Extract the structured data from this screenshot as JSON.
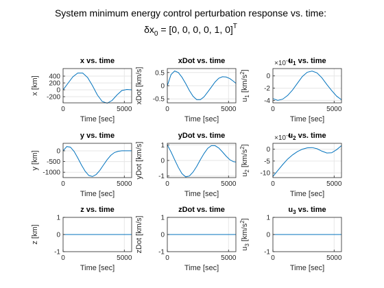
{
  "figure": {
    "title_line1": "System minimum energy control perturbation response vs. time:",
    "title_line2_prefix": "δx",
    "title_line2_sub": "0",
    "title_line2_body": " = [0, 0, 0, 0, 1, 0]",
    "title_line2_sup": "T"
  },
  "colors": {
    "line": "#0072bd",
    "grid": "#e6e6e6",
    "axis": "#262626"
  },
  "chart_data": [
    {
      "type": "line",
      "title": "x vs. time",
      "xlabel": "Time [sec]",
      "ylabel": "x [km]",
      "exponent": "",
      "xlim": [
        0,
        5600
      ],
      "ylim": [
        -380,
        620
      ],
      "xticks": [
        0,
        5000
      ],
      "xtick_labels": [
        "0",
        "5000"
      ],
      "yticks": [
        -200,
        0,
        200,
        400
      ],
      "ytick_labels": [
        "-200",
        "0",
        "200",
        "400"
      ],
      "x": [
        0,
        400,
        800,
        1200,
        1600,
        2000,
        2400,
        2800,
        3200,
        3600,
        4000,
        4400,
        4800,
        5200,
        5600
      ],
      "y": [
        0,
        190,
        380,
        490,
        490,
        360,
        120,
        -150,
        -340,
        -390,
        -310,
        -150,
        -20,
        10,
        0
      ]
    },
    {
      "type": "line",
      "title": "xDot vs. time",
      "xlabel": "Time [sec]",
      "ylabel": "xDot [km/s]",
      "exponent": "",
      "xlim": [
        0,
        5600
      ],
      "ylim": [
        -0.65,
        0.65
      ],
      "xticks": [
        0,
        5000
      ],
      "xtick_labels": [
        "0",
        "5000"
      ],
      "yticks": [
        -0.5,
        0,
        0.5
      ],
      "ytick_labels": [
        "-0.5",
        "0",
        "0.5"
      ],
      "x": [
        0,
        300,
        600,
        900,
        1200,
        1500,
        1800,
        2100,
        2400,
        2700,
        3000,
        3300,
        3600,
        3900,
        4200,
        4500,
        4800,
        5100,
        5400,
        5600
      ],
      "y": [
        0,
        0.42,
        0.56,
        0.5,
        0.32,
        0.08,
        -0.18,
        -0.4,
        -0.53,
        -0.53,
        -0.42,
        -0.24,
        -0.05,
        0.14,
        0.28,
        0.34,
        0.33,
        0.27,
        0.17,
        0.09
      ]
    },
    {
      "type": "line",
      "title": "u",
      "title_sub": "1",
      "title_tail": " vs. time",
      "xlabel": "Time [sec]",
      "ylabel": "u",
      "ylabel_sub": "1",
      "ylabel_tail": " [km/s",
      "ylabel_sup": "2",
      "ylabel_end": "]",
      "exponent": "×10",
      "exponent_sup": "-4",
      "xlim": [
        0,
        5600
      ],
      "ylim": [
        -4.4,
        1.2
      ],
      "xticks": [
        0,
        5000
      ],
      "xtick_labels": [
        "0",
        "5000"
      ],
      "yticks": [
        -4,
        -2,
        0
      ],
      "ytick_labels": [
        "-4",
        "-2",
        "0"
      ],
      "x": [
        0,
        400,
        800,
        1200,
        1600,
        2000,
        2400,
        2800,
        3200,
        3600,
        4000,
        4400,
        4800,
        5200,
        5600
      ],
      "y": [
        -3.7,
        -4.0,
        -3.8,
        -3.2,
        -2.3,
        -1.2,
        -0.1,
        0.6,
        0.8,
        0.5,
        -0.3,
        -1.4,
        -2.4,
        -3.3,
        -3.9
      ]
    },
    {
      "type": "line",
      "title": "y vs. time",
      "xlabel": "Time [sec]",
      "ylabel": "y [km]",
      "exponent": "",
      "xlim": [
        0,
        5600
      ],
      "ylim": [
        -1250,
        350
      ],
      "xticks": [
        0,
        5000
      ],
      "xtick_labels": [
        "0",
        "5000"
      ],
      "yticks": [
        -1000,
        -500,
        0
      ],
      "ytick_labels": [
        "-1000",
        "-500",
        "0"
      ],
      "x": [
        0,
        300,
        600,
        900,
        1200,
        1500,
        1800,
        2100,
        2400,
        2700,
        3000,
        3300,
        3600,
        3900,
        4200,
        4500,
        4800,
        5100,
        5400,
        5600
      ],
      "y": [
        0,
        200,
        170,
        -30,
        -330,
        -660,
        -950,
        -1150,
        -1200,
        -1110,
        -910,
        -660,
        -410,
        -210,
        -80,
        -20,
        0,
        0,
        0,
        0
      ]
    },
    {
      "type": "line",
      "title": "yDot vs. time",
      "xlabel": "Time [sec]",
      "ylabel": "yDot [km/s]",
      "exponent": "",
      "xlim": [
        0,
        5600
      ],
      "ylim": [
        -1.1,
        1.1
      ],
      "xticks": [
        0,
        5000
      ],
      "xtick_labels": [
        "0",
        "5000"
      ],
      "yticks": [
        -1,
        0,
        1
      ],
      "ytick_labels": [
        "-1",
        "0",
        "1"
      ],
      "x": [
        0,
        300,
        600,
        900,
        1200,
        1500,
        1800,
        2100,
        2400,
        2700,
        3000,
        3300,
        3600,
        3900,
        4200,
        4500,
        4800,
        5100,
        5400,
        5600
      ],
      "y": [
        1.0,
        0.55,
        0.05,
        -0.45,
        -0.85,
        -1.05,
        -1.0,
        -0.75,
        -0.38,
        0.05,
        0.45,
        0.78,
        0.95,
        0.95,
        0.8,
        0.55,
        0.28,
        0.05,
        -0.08,
        -0.1
      ]
    },
    {
      "type": "line",
      "title": "u",
      "title_sub": "2",
      "title_tail": " vs. time",
      "xlabel": "Time [sec]",
      "ylabel": "u",
      "ylabel_sub": "2",
      "ylabel_tail": " [km/s",
      "ylabel_sup": "2",
      "ylabel_end": "]",
      "exponent": "×10",
      "exponent_sup": "-4",
      "xlim": [
        0,
        5600
      ],
      "ylim": [
        -12,
        2.5
      ],
      "xticks": [
        0,
        5000
      ],
      "xtick_labels": [
        "0",
        "5000"
      ],
      "yticks": [
        -10,
        -5,
        0
      ],
      "ytick_labels": [
        "-10",
        "-5",
        "0"
      ],
      "x": [
        0,
        400,
        800,
        1200,
        1600,
        2000,
        2400,
        2800,
        3200,
        3600,
        4000,
        4400,
        4800,
        5200,
        5600
      ],
      "y": [
        -11.5,
        -9.0,
        -6.5,
        -4.2,
        -2.4,
        -1.0,
        0.0,
        0.6,
        0.7,
        0.2,
        -0.8,
        -1.6,
        -1.5,
        -0.2,
        1.5
      ]
    },
    {
      "type": "line",
      "title": "z vs. time",
      "xlabel": "Time [sec]",
      "ylabel": "z [km]",
      "exponent": "",
      "xlim": [
        0,
        5600
      ],
      "ylim": [
        -1,
        1
      ],
      "xticks": [
        0,
        5000
      ],
      "xtick_labels": [
        "0",
        "5000"
      ],
      "yticks": [
        -1,
        0,
        1
      ],
      "ytick_labels": [
        "-1",
        "0",
        "1"
      ],
      "x": [
        0,
        5600
      ],
      "y": [
        0,
        0
      ]
    },
    {
      "type": "line",
      "title": "zDot vs. time",
      "xlabel": "Time [sec]",
      "ylabel": "zDot [km/s]",
      "exponent": "",
      "xlim": [
        0,
        5600
      ],
      "ylim": [
        -1,
        1
      ],
      "xticks": [
        0,
        5000
      ],
      "xtick_labels": [
        "0",
        "5000"
      ],
      "yticks": [
        -1,
        0,
        1
      ],
      "ytick_labels": [
        "-1",
        "0",
        "1"
      ],
      "x": [
        0,
        5600
      ],
      "y": [
        0,
        0
      ]
    },
    {
      "type": "line",
      "title": "u",
      "title_sub": "3",
      "title_tail": " vs. time",
      "xlabel": "Time [sec]",
      "ylabel": "u",
      "ylabel_sub": "3",
      "ylabel_tail": " [km/s",
      "ylabel_sup": "2",
      "ylabel_end": "]",
      "exponent": "",
      "xlim": [
        0,
        5600
      ],
      "ylim": [
        -1,
        1
      ],
      "xticks": [
        0,
        5000
      ],
      "xtick_labels": [
        "0",
        "5000"
      ],
      "yticks": [
        -1,
        0,
        1
      ],
      "ytick_labels": [
        "-1",
        "0",
        "1"
      ],
      "x": [
        0,
        5600
      ],
      "y": [
        0,
        0
      ]
    }
  ]
}
